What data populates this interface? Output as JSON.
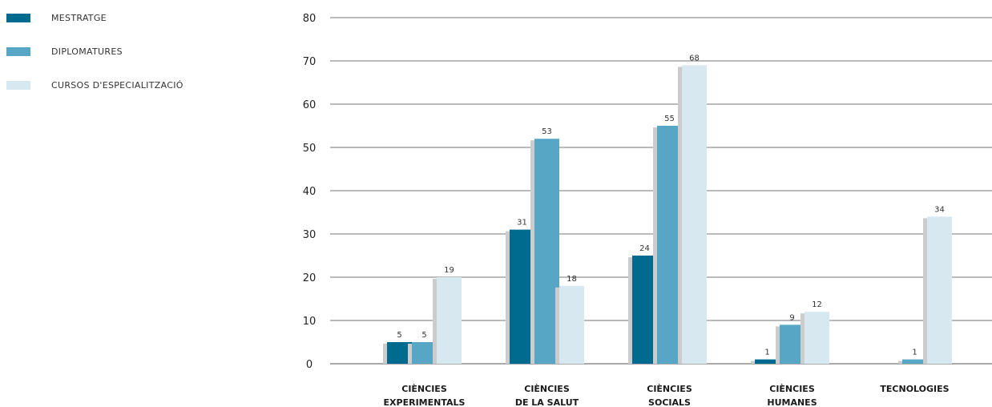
{
  "chart_data": {
    "type": "bar",
    "categories": [
      [
        "CIÈNCIES",
        "EXPERIMENTALS"
      ],
      [
        "CIÈNCIES",
        "DE LA SALUT"
      ],
      [
        "CIÈNCIES",
        "SOCIALS"
      ],
      [
        "CIÈNCIES",
        "HUMANES"
      ],
      [
        "TECNOLOGIES"
      ]
    ],
    "series": [
      {
        "name": "MESTRATGE",
        "color": "#006a8f",
        "values": [
          5,
          31,
          24,
          1,
          null
        ]
      },
      {
        "name": "DIPLOMATURES",
        "color": "#58a6c6",
        "values": [
          5,
          53,
          55,
          9,
          1
        ]
      },
      {
        "name": "CURSOS D'ESPECIALITZACIÓ",
        "color": "#d8e8f1",
        "values": [
          19,
          18,
          68,
          12,
          34
        ]
      }
    ],
    "bar_heights": [
      [
        5,
        31,
        25,
        1,
        null
      ],
      [
        5,
        52,
        55,
        9,
        1
      ],
      [
        20,
        18,
        69,
        12,
        34
      ]
    ],
    "yticks": [
      0,
      10,
      20,
      30,
      40,
      50,
      60,
      70,
      80
    ],
    "ylim": [
      0,
      80
    ],
    "grid": true,
    "legend": "top-left",
    "shadow_color": "#cccccc"
  }
}
